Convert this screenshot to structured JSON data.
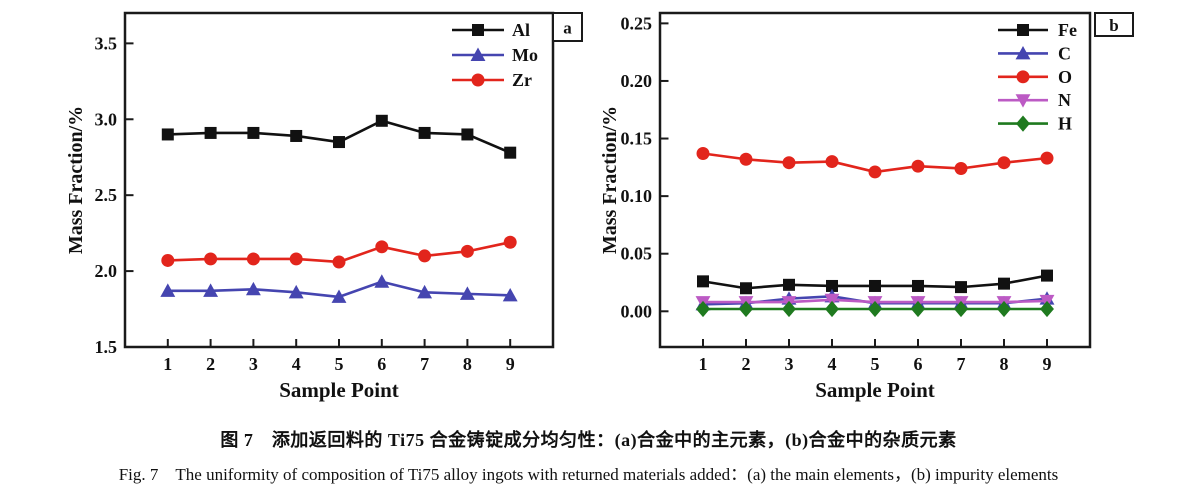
{
  "captions": {
    "chinese": "图 7　添加返回料的 Ti75 合金铸锭成分均匀性：(a)合金中的主元素，(b)合金中的杂质元素",
    "english": "Fig. 7　The uniformity of composition of Ti75 alloy ingots with returned materials added：(a) the main elements，(b) impurity elements"
  },
  "colors": {
    "axis": "#1a1a1a",
    "black_series": "#111111",
    "blue_series": "#4545b0",
    "red_series": "#e2251c",
    "magenta_series": "#bc5ac4",
    "green_series": "#1f7a1f"
  },
  "chart_data": [
    {
      "type": "line",
      "panel_label": "a",
      "xlabel": "Sample Point",
      "ylabel": "Mass Fraction/%",
      "x": [
        1,
        2,
        3,
        4,
        5,
        6,
        7,
        8,
        9
      ],
      "xlim": [
        0,
        10
      ],
      "ylim": [
        1.5,
        3.7
      ],
      "xtick_labels": [
        "1",
        "2",
        "3",
        "4",
        "5",
        "6",
        "7",
        "8",
        "9"
      ],
      "yticks": [
        1.5,
        2.0,
        2.5,
        3.0,
        3.5
      ],
      "ytick_labels": [
        "1.5",
        "2.0",
        "2.5",
        "3.0",
        "3.5"
      ],
      "grid": false,
      "legend_position": "top-right-inside",
      "series": [
        {
          "name": "Al",
          "marker": "square",
          "color": "#111111",
          "values": [
            2.9,
            2.91,
            2.91,
            2.89,
            2.85,
            2.99,
            2.91,
            2.9,
            2.78
          ]
        },
        {
          "name": "Mo",
          "marker": "triangle-up",
          "color": "#4545b0",
          "values": [
            1.87,
            1.87,
            1.88,
            1.86,
            1.83,
            1.93,
            1.86,
            1.85,
            1.84
          ]
        },
        {
          "name": "Zr",
          "marker": "circle",
          "color": "#e2251c",
          "values": [
            2.07,
            2.08,
            2.08,
            2.08,
            2.06,
            2.16,
            2.1,
            2.13,
            2.19
          ]
        }
      ]
    },
    {
      "type": "line",
      "panel_label": "b",
      "xlabel": "Sample Point",
      "ylabel": "Mass Fraction/%",
      "x": [
        1,
        2,
        3,
        4,
        5,
        6,
        7,
        8,
        9
      ],
      "xlim": [
        0,
        10
      ],
      "ylim": [
        -0.031,
        0.259
      ],
      "xtick_labels": [
        "1",
        "2",
        "3",
        "4",
        "5",
        "6",
        "7",
        "8",
        "9"
      ],
      "yticks": [
        0.0,
        0.05,
        0.1,
        0.15,
        0.2,
        0.25
      ],
      "ytick_labels": [
        "0.00",
        "0.05",
        "0.10",
        "0.15",
        "0.20",
        "0.25"
      ],
      "grid": false,
      "legend_position": "top-right-inside",
      "series": [
        {
          "name": "Fe",
          "marker": "square",
          "color": "#111111",
          "values": [
            0.026,
            0.02,
            0.023,
            0.022,
            0.022,
            0.022,
            0.021,
            0.024,
            0.031
          ]
        },
        {
          "name": "C",
          "marker": "triangle-up",
          "color": "#4545b0",
          "values": [
            0.006,
            0.007,
            0.011,
            0.013,
            0.007,
            0.007,
            0.007,
            0.007,
            0.011
          ]
        },
        {
          "name": "O",
          "marker": "circle",
          "color": "#e2251c",
          "values": [
            0.137,
            0.132,
            0.129,
            0.13,
            0.121,
            0.126,
            0.124,
            0.129,
            0.133
          ]
        },
        {
          "name": "N",
          "marker": "triangle-down",
          "color": "#bc5ac4",
          "values": [
            0.008,
            0.008,
            0.008,
            0.01,
            0.008,
            0.008,
            0.008,
            0.008,
            0.009
          ]
        },
        {
          "name": "H",
          "marker": "diamond",
          "color": "#1f7a1f",
          "values": [
            0.002,
            0.002,
            0.002,
            0.002,
            0.002,
            0.002,
            0.002,
            0.002,
            0.002
          ]
        }
      ]
    }
  ]
}
